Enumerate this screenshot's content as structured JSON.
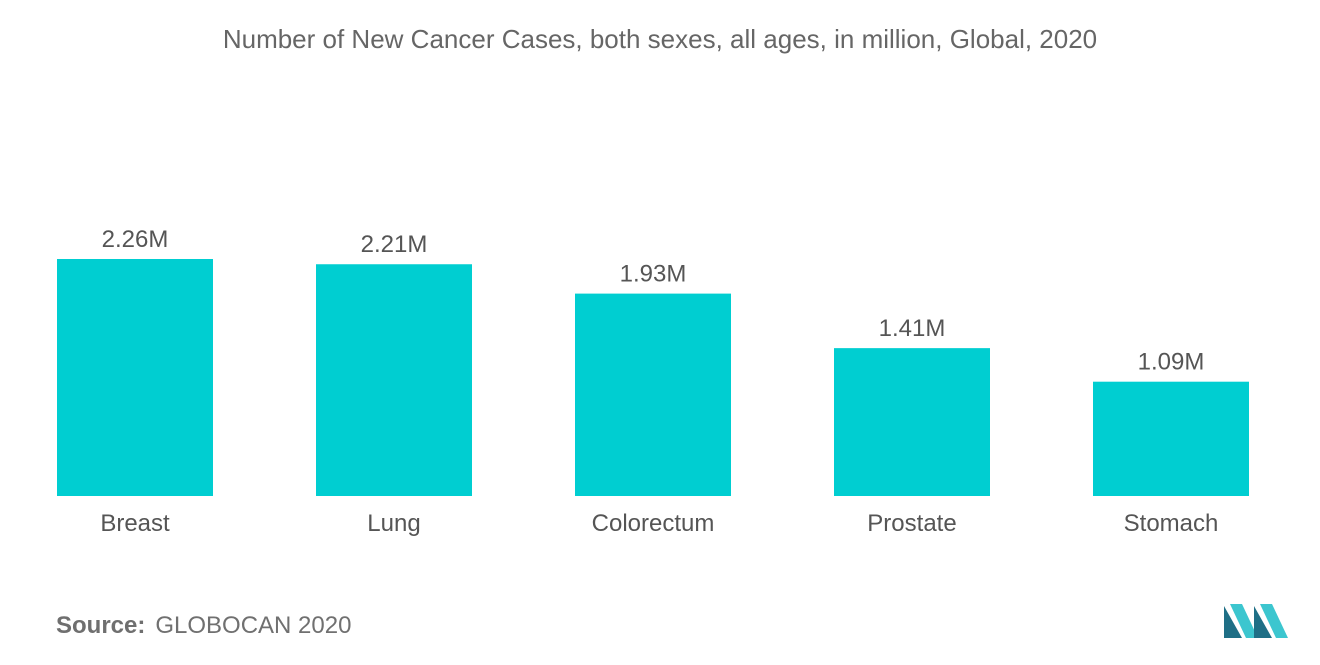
{
  "colors": {
    "bar": "#00CED1",
    "text": "#555555",
    "logo_dark": "#1f6f86",
    "logo_light": "#3cc6cf"
  },
  "chart_data": {
    "type": "bar",
    "title": "Number of New Cancer Cases, both sexes, all ages, in million, Global, 2020",
    "categories": [
      "Breast",
      "Lung",
      "Colorectum",
      "Prostate",
      "Stomach"
    ],
    "values": [
      2.26,
      2.21,
      1.93,
      1.41,
      1.09
    ],
    "data_labels": [
      "2.26M",
      "2.21M",
      "1.93M",
      "1.41M",
      "1.09M"
    ],
    "xlabel": "",
    "ylabel": "",
    "ylim": [
      0,
      2.26
    ],
    "grid": false,
    "legend": "none"
  },
  "footer": {
    "source_label": "Source:",
    "source_value": "GLOBOCAN 2020"
  },
  "logo": {
    "icon": "mordor-intelligence-logo-icon"
  }
}
